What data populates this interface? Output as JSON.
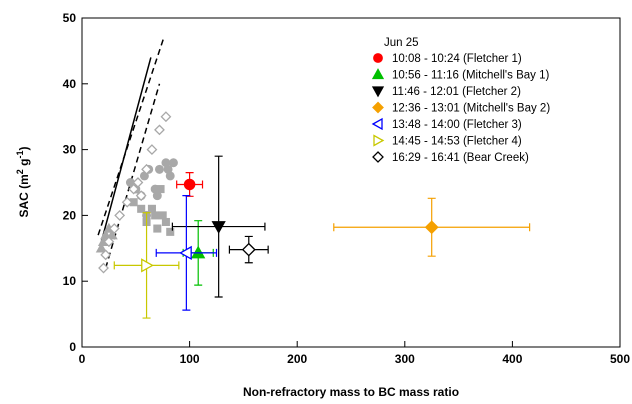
{
  "chart_data": {
    "type": "scatter",
    "xlabel": "Non-refractory mass to BC mass ratio",
    "ylabel": [
      "SAC (m",
      "2",
      " g",
      "-1",
      ")"
    ],
    "xlim": [
      0,
      500
    ],
    "xticks": [
      0,
      100,
      200,
      300,
      400,
      500
    ],
    "ylim": [
      0,
      50
    ],
    "yticks": [
      0,
      10,
      20,
      30,
      40,
      50
    ],
    "legend_title": "Jun 25",
    "series": [
      {
        "name": "10:08 - 10:24 (Fletcher 1)",
        "color": "#ff0000",
        "marker": "circle",
        "filled": true,
        "x": [
          100
        ],
        "y": [
          24.7
        ],
        "xerr": [
          12
        ],
        "yerr": [
          1.8
        ]
      },
      {
        "name": "10:56 - 11:16 (Mitchell's Bay 1)",
        "color": "#00c000",
        "marker": "triangle-up",
        "filled": true,
        "x": [
          108
        ],
        "y": [
          14.3
        ],
        "xerr": [
          14
        ],
        "yerr": [
          4.9
        ]
      },
      {
        "name": "11:46 - 12:01 (Fletcher 2)",
        "color": "#000000",
        "marker": "triangle-down",
        "filled": true,
        "x": [
          127
        ],
        "y": [
          18.3
        ],
        "xerr": [
          43
        ],
        "yerr": [
          10.7
        ]
      },
      {
        "name": "12:36 - 13:01 (Mitchell's Bay 2)",
        "color": "#f5a000",
        "marker": "diamond",
        "filled": true,
        "x": [
          325
        ],
        "y": [
          18.2
        ],
        "xerr": [
          91
        ],
        "yerr": [
          4.4
        ]
      },
      {
        "name": "13:48 - 14:00 (Fletcher 3)",
        "color": "#0000ff",
        "marker": "triangle-left",
        "filled": false,
        "x": [
          97
        ],
        "y": [
          14.3
        ],
        "xerr": [
          28
        ],
        "yerr": [
          8.7
        ]
      },
      {
        "name": "14:45 - 14:53 (Fletcher 4)",
        "color": "#c8c800",
        "marker": "triangle-right",
        "filled": false,
        "x": [
          60
        ],
        "y": [
          12.4
        ],
        "xerr": [
          30
        ],
        "yerr": [
          8
        ]
      },
      {
        "name": "16:29 - 16:41 (Bear Creek)",
        "color": "#000000",
        "marker": "diamond",
        "filled": false,
        "x": [
          155
        ],
        "y": [
          14.8
        ],
        "xerr": [
          18
        ],
        "yerr": [
          2
        ]
      },
      {
        "color": "#a8a8a8",
        "marker": "circle",
        "filled": true,
        "x": [
          45,
          50,
          55,
          58,
          62,
          68,
          72,
          78,
          80,
          85,
          82,
          60,
          70
        ],
        "y": [
          25,
          24,
          23,
          26,
          27,
          24,
          27,
          28,
          27,
          28,
          26,
          20,
          23
        ]
      },
      {
        "color": "#a8a8a8",
        "marker": "square",
        "filled": true,
        "x": [
          55,
          60,
          68,
          75,
          70,
          78,
          82,
          65,
          48,
          73
        ],
        "y": [
          21,
          19,
          20,
          20,
          18,
          19,
          17.5,
          21,
          22,
          24
        ]
      },
      {
        "color": "#a8a8a8",
        "marker": "triangle-up",
        "filled": true,
        "x": [
          18,
          22,
          25,
          20,
          28
        ],
        "y": [
          15,
          17,
          18,
          16,
          17
        ]
      },
      {
        "color": "#a8a8a8",
        "marker": "diamond",
        "filled": false,
        "x": [
          20,
          22,
          25,
          30,
          35,
          42,
          48,
          52,
          55,
          60,
          65,
          72,
          78
        ],
        "y": [
          12,
          14,
          16,
          18,
          20,
          22,
          24,
          25,
          23,
          27,
          30,
          33,
          35
        ]
      }
    ],
    "lines": [
      {
        "x": [
          18,
          64
        ],
        "y": [
          16,
          44
        ],
        "dashed": false,
        "color": "#000000"
      },
      {
        "x": [
          15,
          76
        ],
        "y": [
          17,
          47
        ],
        "dashed": true,
        "color": "#000000"
      },
      {
        "x": [
          22,
          72
        ],
        "y": [
          12,
          40
        ],
        "dashed": true,
        "color": "#000000"
      }
    ]
  }
}
